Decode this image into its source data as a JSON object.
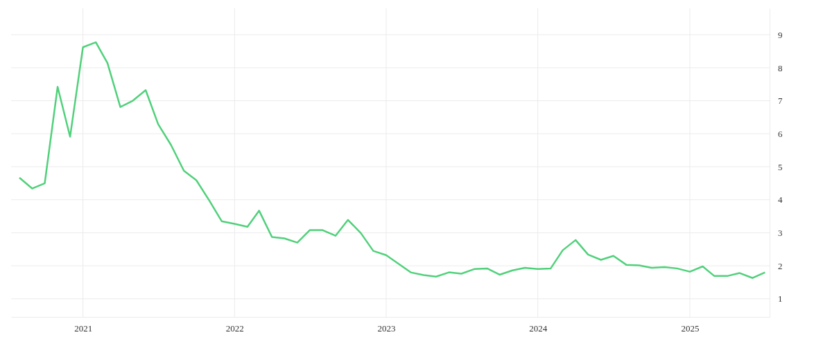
{
  "chart_data": {
    "type": "line",
    "x": [
      "2020-08",
      "2020-09",
      "2020-10",
      "2020-11",
      "2020-12",
      "2021-01",
      "2021-02",
      "2021-03",
      "2021-04",
      "2021-05",
      "2021-06",
      "2021-07",
      "2021-08",
      "2021-09",
      "2021-10",
      "2021-11",
      "2021-12",
      "2022-01",
      "2022-02",
      "2022-03",
      "2022-04",
      "2022-05",
      "2022-06",
      "2022-07",
      "2022-08",
      "2022-09",
      "2022-10",
      "2022-11",
      "2022-12",
      "2023-01",
      "2023-02",
      "2023-03",
      "2023-04",
      "2023-05",
      "2023-06",
      "2023-07",
      "2023-08",
      "2023-09",
      "2023-10",
      "2023-11",
      "2023-12",
      "2024-01",
      "2024-02",
      "2024-03",
      "2024-04",
      "2024-05",
      "2024-06",
      "2024-07",
      "2024-08",
      "2024-09",
      "2024-10",
      "2024-11",
      "2024-12",
      "2025-01",
      "2025-02",
      "2025-03",
      "2025-04",
      "2025-05",
      "2025-06",
      "2025-07"
    ],
    "series": [
      {
        "color": "#4fd17a",
        "values": [
          4.67,
          4.34,
          4.5,
          7.42,
          5.91,
          8.62,
          8.77,
          8.14,
          6.81,
          7.0,
          7.32,
          6.29,
          5.66,
          4.88,
          4.59,
          3.98,
          3.35,
          3.27,
          3.18,
          3.67,
          2.87,
          2.83,
          2.7,
          3.08,
          3.08,
          2.91,
          3.39,
          2.99,
          2.45,
          2.32,
          2.05,
          1.8,
          1.72,
          1.67,
          1.8,
          1.76,
          1.9,
          1.92,
          1.73,
          1.86,
          1.94,
          1.9,
          1.92,
          2.47,
          2.78,
          2.34,
          2.18,
          2.3,
          2.03,
          2.01,
          1.94,
          1.96,
          1.92,
          1.82,
          1.98,
          1.69,
          1.69,
          1.78,
          1.63,
          1.8
        ]
      }
    ],
    "xlim": [
      "2020-07-12",
      "2025-07-12"
    ],
    "xticks": [
      {
        "value": "2021-01-01",
        "label": "2021"
      },
      {
        "value": "2022-01-01",
        "label": "2022"
      },
      {
        "value": "2023-01-01",
        "label": "2023"
      },
      {
        "value": "2024-01-01",
        "label": "2024"
      },
      {
        "value": "2025-01-01",
        "label": "2025"
      }
    ],
    "ylim": [
      0.45,
      9.8
    ],
    "yticks": [
      1,
      2,
      3,
      4,
      5,
      6,
      7,
      8,
      9
    ],
    "grid": true,
    "marker": "none",
    "line_style": "solid"
  }
}
